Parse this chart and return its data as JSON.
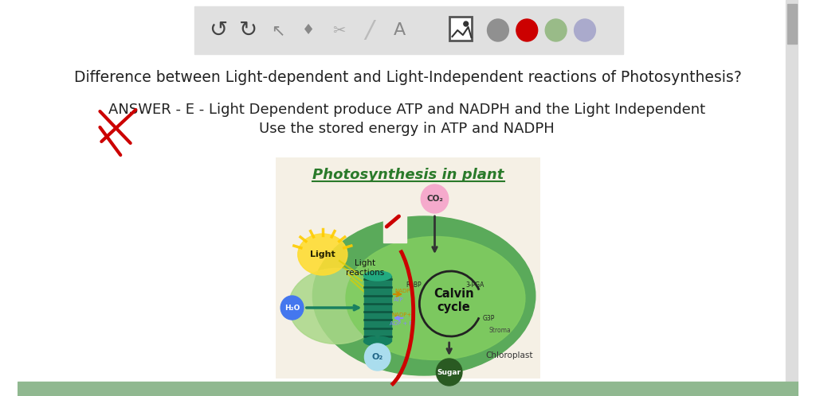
{
  "bg_color": "#ffffff",
  "toolbar_bg": "#e0e0e0",
  "question_text": "Difference between Light-dependent and Light-Independent reactions of Photosynthesis?",
  "answer_line1": "ANSWER - E - Light Dependent produce ATP and NADPH and the Light Independent",
  "answer_line2": "Use the stored energy in ATP and NADPH",
  "diagram_title": "Photosynthesis in plant",
  "content_bg": "#ffffff",
  "bottom_bar_color": "#90b890",
  "scrollbar_color": "#c8c8c8",
  "toolbar_circle_gray": "#909090",
  "toolbar_circle_red": "#cc0000",
  "toolbar_circle_green": "#99bb88",
  "toolbar_circle_purple": "#aaaacc"
}
